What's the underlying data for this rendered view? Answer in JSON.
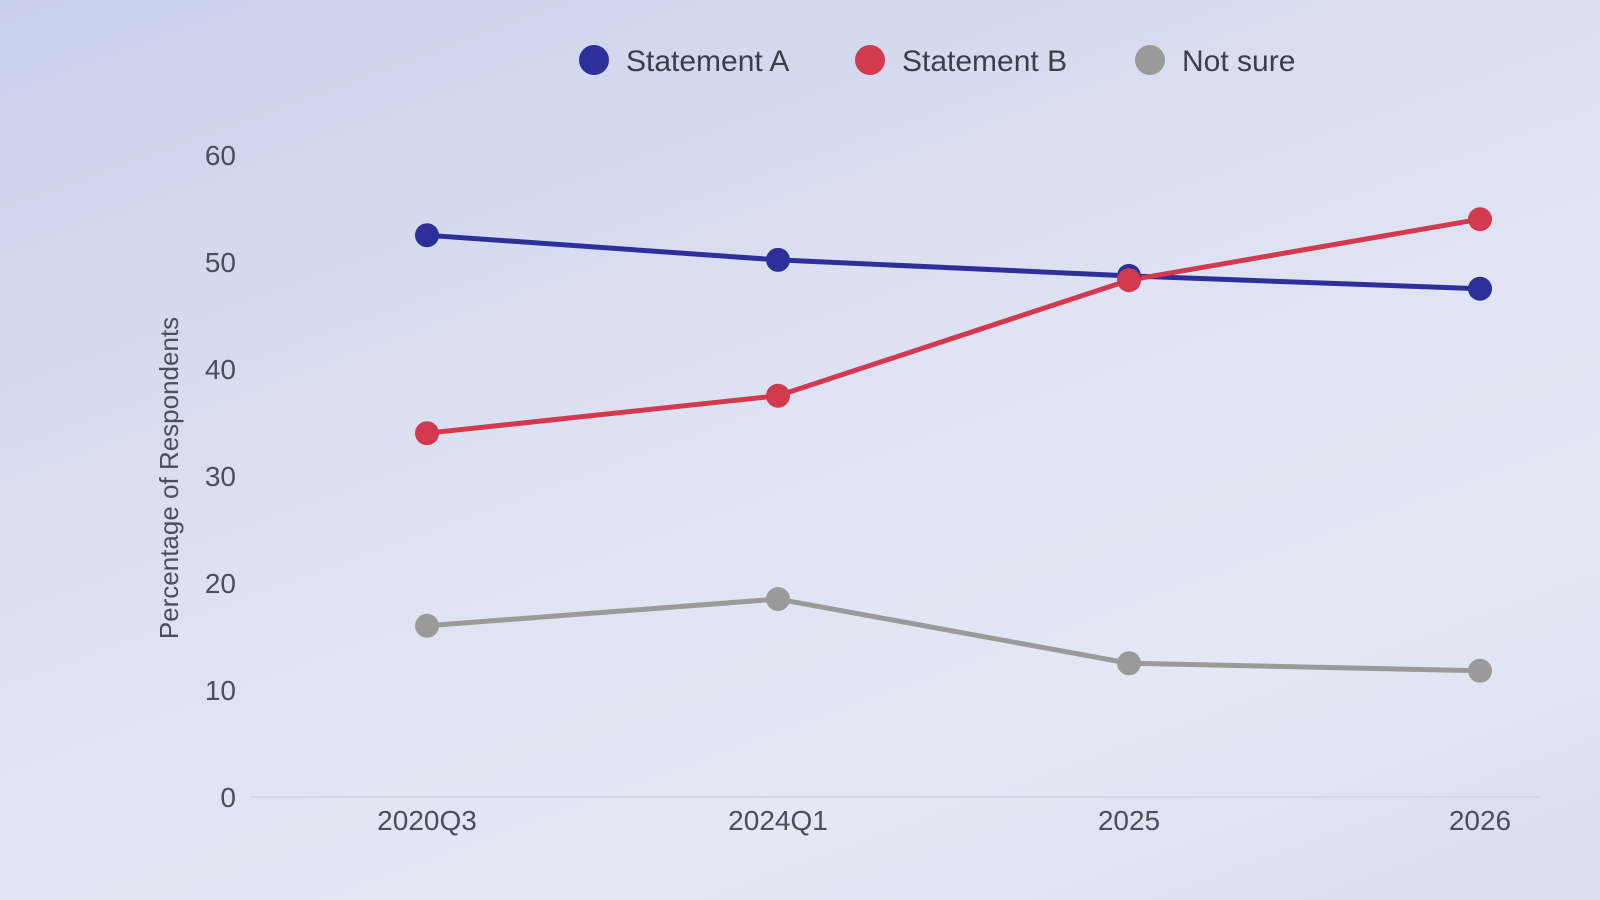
{
  "chart_data": {
    "type": "line",
    "title": "",
    "xlabel": "",
    "ylabel": "Percentage of Respondents",
    "categories": [
      "2020Q3",
      "2024Q1",
      "2025",
      "2026"
    ],
    "yticks": [
      "0",
      "10",
      "20",
      "30",
      "40",
      "50",
      "60"
    ],
    "ylim": [
      0,
      60
    ],
    "grid": false,
    "legend_position": "top-center",
    "series": [
      {
        "name": "Statement A",
        "color": "#2f2f9a",
        "values": [
          52.5,
          50.2,
          48.7,
          47.5
        ]
      },
      {
        "name": "Statement B",
        "color": "#d33a4f",
        "values": [
          34,
          37.5,
          48.3,
          54
        ]
      },
      {
        "name": "Not sure",
        "color": "#9a9a9a",
        "values": [
          16,
          18.5,
          12.5,
          11.8
        ]
      }
    ]
  }
}
